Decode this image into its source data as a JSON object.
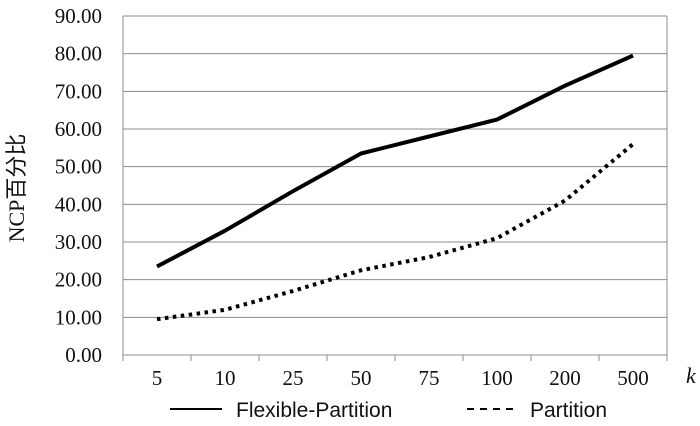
{
  "chart_data": {
    "type": "line",
    "categories": [
      "5",
      "10",
      "25",
      "50",
      "75",
      "100",
      "200",
      "500"
    ],
    "y_ticks": [
      "0.00",
      "10.00",
      "20.00",
      "30.00",
      "40.00",
      "50.00",
      "60.00",
      "70.00",
      "80.00",
      "90.00"
    ],
    "ylim": [
      0,
      90
    ],
    "xlabel": "k",
    "ylabel": "NCP百分比",
    "grid": true,
    "legend_position": "bottom",
    "series": [
      {
        "name": "Flexible-Partition",
        "values": [
          23.5,
          33.0,
          43.5,
          53.5,
          58.0,
          62.5,
          71.5,
          79.5
        ],
        "color": "#000000",
        "style": "solid"
      },
      {
        "name": "Partition",
        "values": [
          9.5,
          12.0,
          17.0,
          22.5,
          26.0,
          31.0,
          41.0,
          56.0
        ],
        "color": "#000000",
        "style": "dotted"
      }
    ]
  }
}
